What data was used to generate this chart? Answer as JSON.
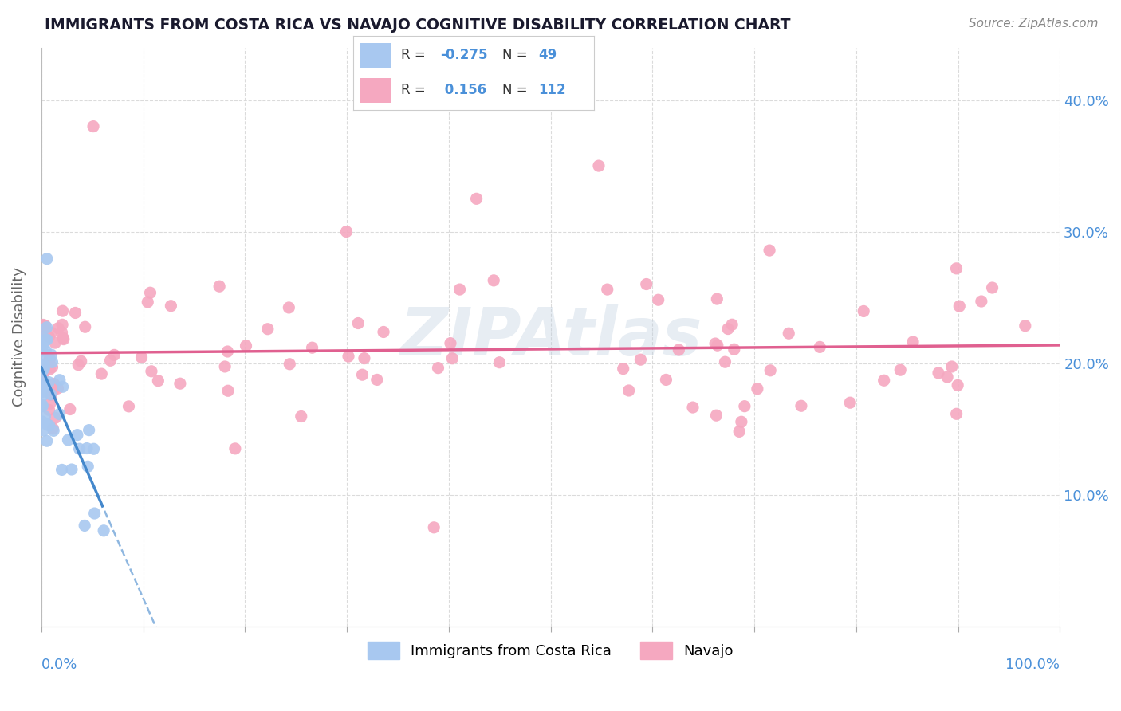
{
  "title": "IMMIGRANTS FROM COSTA RICA VS NAVAJO COGNITIVE DISABILITY CORRELATION CHART",
  "source_text": "Source: ZipAtlas.com",
  "ylabel": "Cognitive Disability",
  "watermark": "ZIPAtlas",
  "blue_r": -0.275,
  "blue_n": 49,
  "pink_r": 0.156,
  "pink_n": 112,
  "blue_scatter_color": "#a8c8f0",
  "pink_scatter_color": "#f5a8c0",
  "blue_line_color": "#4488cc",
  "pink_line_color": "#e06090",
  "axis_label_color": "#4a90d9",
  "title_color": "#1a1a2e",
  "grid_color": "#d8d8d8",
  "background_color": "#ffffff",
  "xlim": [
    0,
    100
  ],
  "ylim": [
    0,
    44
  ],
  "y_ticks": [
    10,
    20,
    30,
    40
  ],
  "x_tick_positions": [
    0,
    10,
    20,
    30,
    40,
    50,
    60,
    70,
    80,
    90,
    100
  ],
  "legend_blue_r": "-0.275",
  "legend_blue_n": "49",
  "legend_pink_r": "0.156",
  "legend_pink_n": "112",
  "bottom_legend_blue": "Immigrants from Costa Rica",
  "bottom_legend_pink": "Navajo"
}
